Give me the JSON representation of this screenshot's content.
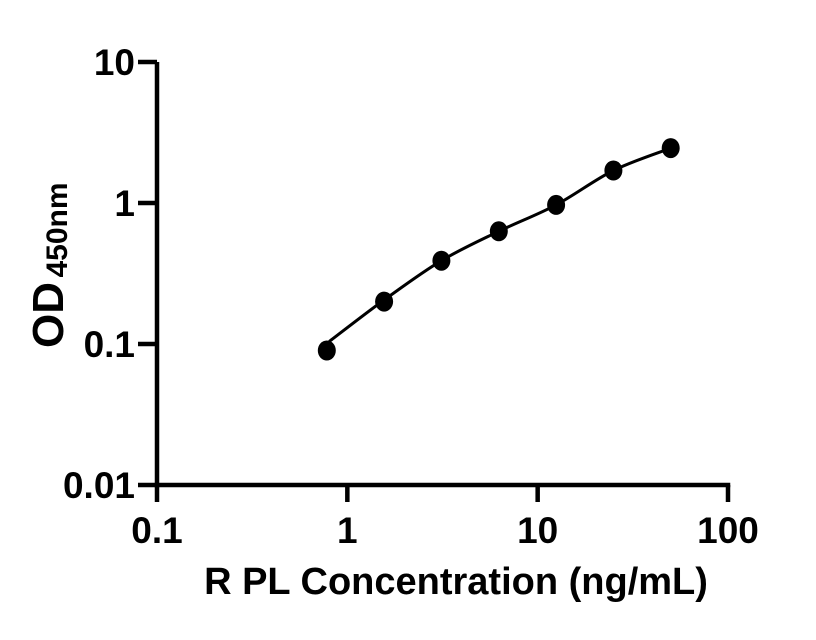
{
  "chart_data": {
    "type": "scatter",
    "title": "",
    "xlabel": "R PL Concentration (ng/mL)",
    "ylabel": "OD450nm",
    "ylabel_main": "OD",
    "ylabel_sub": "450nm",
    "xscale": "log",
    "yscale": "log",
    "xlim": [
      0.1,
      100
    ],
    "ylim": [
      0.01,
      10
    ],
    "grid": false,
    "legend": false,
    "x_ticks": {
      "values": [
        0.1,
        1,
        10,
        100
      ],
      "labels": [
        "0.1",
        "1",
        "10",
        "100"
      ]
    },
    "y_ticks": {
      "values": [
        0.01,
        0.1,
        1,
        10
      ],
      "labels": [
        "0.01",
        "0.1",
        "1",
        "10"
      ]
    },
    "series": [
      {
        "name": "standard-points",
        "marker": "filled-circle",
        "color": "#000000",
        "x": [
          0.78,
          1.56,
          3.12,
          6.25,
          12.5,
          25,
          50
        ],
        "y": [
          0.09,
          0.2,
          0.39,
          0.63,
          0.97,
          1.7,
          2.45
        ]
      }
    ],
    "fit_curve": {
      "name": "fitted-standard-curve",
      "color": "#000000",
      "x": [
        0.81,
        1.56,
        3.12,
        6.25,
        12.5,
        25,
        50
      ],
      "y": [
        0.105,
        0.205,
        0.39,
        0.63,
        0.97,
        1.7,
        2.45
      ]
    },
    "colors": {
      "points": "#000000",
      "line": "#000000",
      "axis": "#000000",
      "text": "#000000",
      "background": "#ffffff"
    }
  }
}
